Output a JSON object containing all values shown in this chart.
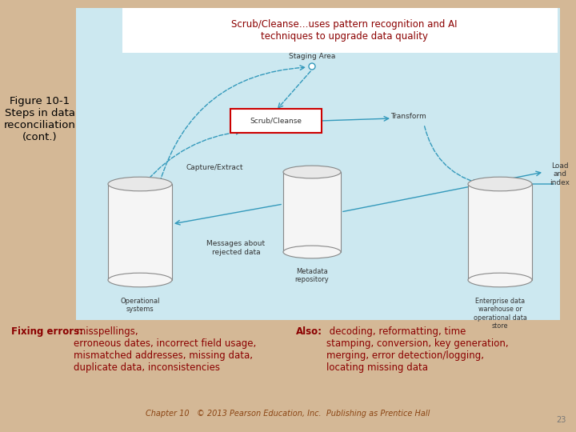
{
  "bg_color": "#d4b896",
  "panel_color": "#cce8f0",
  "title_text": "Scrub/Cleanse…uses pattern recognition and AI\ntechniques to upgrade data quality",
  "title_color": "#8B0000",
  "fig_label": "Figure 10-1\nSteps in data\nreconciliation\n(cont.)",
  "fig_label_color": "#000000",
  "arrow_color": "#3399bb",
  "diagram_labels": {
    "staging_area": "Staging Area",
    "scrub_cleanse": "Scrub/Cleanse",
    "transform": "Transform",
    "capture_extract": "Capture/Extract",
    "metadata_repo": "Metadata\nrepository",
    "load_index": "Load\nand\nindex",
    "messages": "Messages about\nrejected data",
    "operational": "Operational\nsystems",
    "enterprise": "Enterprise data\nwarehouse or\noperational data\nstore"
  },
  "bottom_left_bold": "Fixing errors:",
  "bottom_left_text": " misspellings,\nerroneous dates, incorrect field usage,\nmismatched addresses, missing data,\nduplicate data, inconsistencies",
  "bottom_right_bold": "Also:",
  "bottom_right_text": " decoding, reformatting, time\nstamping, conversion, key generation,\nmerging, error detection/logging,\nlocating missing data",
  "bottom_text_color": "#8B0000",
  "footer_text": "Chapter 10   © 2013 Pearson Education, Inc.  Publishing as Prentice Hall",
  "footer_color": "#8B4513",
  "page_number": "23",
  "cylinder_color": "#f5f5f5",
  "cylinder_edge": "#888888"
}
